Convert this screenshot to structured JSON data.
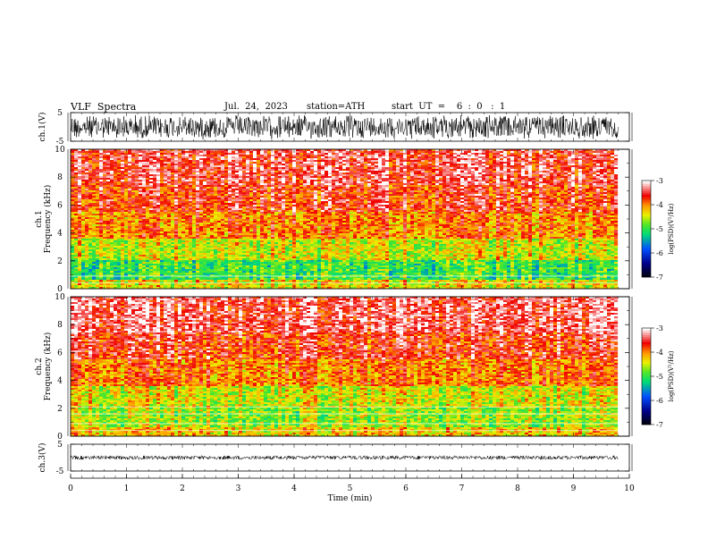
{
  "header": {
    "title": "VLF  Spectra",
    "date": "Jul.  24,  2023",
    "station": "station=ATH",
    "start_ut": "start  UT  =    6  :  0   :  1"
  },
  "chart_data": {
    "type": "heatmap",
    "xlabel": "Time  (min)",
    "xlim": [
      0,
      10
    ],
    "xticks": [
      "0",
      "1",
      "2",
      "3",
      "4",
      "5",
      "6",
      "7",
      "8",
      "9",
      "10"
    ],
    "data_end_min": 9.8,
    "panels": [
      {
        "id": "ch1-waveform",
        "type": "line",
        "ylabel": "ch.1(V)",
        "ylim": [
          -5,
          5
        ],
        "yticks": [
          "5",
          "-5"
        ],
        "amplitude": "large",
        "color": "#000000"
      },
      {
        "id": "ch1-spectrogram",
        "type": "heatmap",
        "ylabel_top": "ch.1",
        "ylabel": "Frequency  (kHz)",
        "ylim": [
          0,
          10
        ],
        "yticks": [
          "0",
          "2",
          "4",
          "6",
          "8",
          "10"
        ],
        "colorbar": {
          "label": "log(PSD)(V²/Hz)",
          "ticks": [
            "-3",
            "-4",
            "-5",
            "-6",
            "-7"
          ],
          "range": [
            -7,
            -3
          ]
        },
        "bands_khz": [
          {
            "f0": 0,
            "f1": 0.7,
            "level": -4.3
          },
          {
            "f0": 0.7,
            "f1": 2.0,
            "level": -4.9
          },
          {
            "f0": 2.0,
            "f1": 3.6,
            "level": -4.4
          },
          {
            "f0": 3.6,
            "f1": 5.5,
            "level": -3.9
          },
          {
            "f0": 5.5,
            "f1": 7.5,
            "level": -3.6
          },
          {
            "f0": 7.5,
            "f1": 10,
            "level": -3.4
          }
        ]
      },
      {
        "id": "ch2-spectrogram",
        "type": "heatmap",
        "ylabel_top": "ch.2",
        "ylabel": "Frequency  (kHz)",
        "ylim": [
          0,
          10
        ],
        "yticks": [
          "0",
          "2",
          "4",
          "6",
          "8",
          "10"
        ],
        "colorbar": {
          "label": "log(PSD)(V²/Hz)",
          "ticks": [
            "-3",
            "-4",
            "-5",
            "-6",
            "-7"
          ],
          "range": [
            -7,
            -3
          ]
        },
        "bands_khz": [
          {
            "f0": 0,
            "f1": 0.7,
            "level": -4.2
          },
          {
            "f0": 0.7,
            "f1": 2.0,
            "level": -4.6
          },
          {
            "f0": 2.0,
            "f1": 3.6,
            "level": -4.4
          },
          {
            "f0": 3.6,
            "f1": 5.5,
            "level": -3.9
          },
          {
            "f0": 5.5,
            "f1": 7.5,
            "level": -3.6
          },
          {
            "f0": 7.5,
            "f1": 10,
            "level": -3.35
          }
        ]
      },
      {
        "id": "ch3-waveform",
        "type": "line",
        "ylabel": "ch.3(V)",
        "ylim": [
          -5,
          5
        ],
        "yticks": [
          "5",
          "-5"
        ],
        "amplitude": "small",
        "color": "#000000"
      }
    ]
  }
}
